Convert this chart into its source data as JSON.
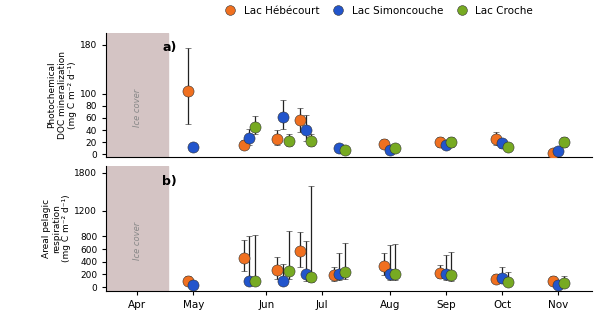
{
  "legend_labels": [
    "Lac Hébécourt",
    "Lac Simoncouche",
    "Lac Croche"
  ],
  "legend_colors": [
    "#F07020",
    "#2255CC",
    "#77AA22"
  ],
  "panel_a": {
    "ylabel": "Photochemical\nDOC mineralization\n(mg C m⁻² d⁻¹)",
    "ylim": [
      -5,
      200
    ],
    "yticks": [
      0,
      20,
      40,
      60,
      80,
      100,
      180
    ],
    "label": "a)",
    "heb": {
      "x": [
        1.0,
        2.0,
        2.6,
        3.0,
        3.6,
        4.5,
        5.5,
        6.5,
        7.5
      ],
      "y": [
        105,
        15,
        25,
        57,
        null,
        17,
        20,
        25,
        3
      ],
      "yerr_lo": [
        55,
        5,
        10,
        20,
        null,
        7,
        8,
        10,
        2
      ],
      "yerr_hi": [
        70,
        8,
        15,
        20,
        null,
        8,
        9,
        12,
        3
      ]
    },
    "sim": {
      "x": [
        1.0,
        2.0,
        2.6,
        3.0,
        3.6,
        4.5,
        5.5,
        6.5,
        7.5
      ],
      "y": [
        12,
        27,
        62,
        40,
        10,
        8,
        16,
        18,
        5
      ],
      "yerr_lo": [
        4,
        12,
        20,
        18,
        5,
        3,
        6,
        7,
        2
      ],
      "yerr_hi": [
        5,
        15,
        28,
        25,
        7,
        4,
        7,
        8,
        3
      ]
    },
    "croche": {
      "x": [
        1.0,
        2.0,
        2.6,
        3.0,
        3.6,
        4.5,
        5.5,
        6.5,
        7.5
      ],
      "y": [
        null,
        45,
        22,
        22,
        8,
        10,
        20,
        13,
        20
      ],
      "yerr_lo": [
        null,
        12,
        8,
        8,
        3,
        3,
        7,
        5,
        7
      ],
      "yerr_hi": [
        null,
        18,
        12,
        12,
        5,
        4,
        8,
        6,
        8
      ]
    }
  },
  "panel_b": {
    "ylabel": "Areal pelagic\nrespiration\n(mg C m⁻² d⁻¹)",
    "ylim": [
      -60,
      1900
    ],
    "yticks": [
      0,
      200,
      400,
      600,
      800,
      1200,
      1800
    ],
    "label": "b)",
    "heb": {
      "x": [
        1.0,
        2.0,
        2.6,
        3.0,
        3.6,
        4.5,
        5.5,
        6.5,
        7.5
      ],
      "y": [
        90,
        460,
        270,
        565,
        190,
        330,
        225,
        130,
        100
      ],
      "yerr_lo": [
        60,
        200,
        140,
        250,
        100,
        140,
        80,
        60,
        50
      ],
      "yerr_hi": [
        80,
        280,
        200,
        300,
        120,
        200,
        120,
        80,
        70
      ]
    },
    "sim": {
      "x": [
        1.0,
        2.0,
        2.6,
        3.0,
        3.6,
        4.5,
        5.5,
        6.5,
        7.5
      ],
      "y": [
        30,
        100,
        100,
        200,
        200,
        210,
        200,
        150,
        30
      ],
      "yerr_lo": [
        20,
        60,
        60,
        100,
        90,
        90,
        80,
        70,
        20
      ],
      "yerr_hi": [
        30,
        700,
        260,
        520,
        330,
        460,
        310,
        160,
        25
      ]
    },
    "croche": {
      "x": [
        1.0,
        2.0,
        2.6,
        3.0,
        3.6,
        4.5,
        5.5,
        6.5,
        7.5
      ],
      "y": [
        null,
        105,
        255,
        165,
        235,
        215,
        195,
        75,
        65
      ],
      "yerr_lo": [
        null,
        60,
        130,
        90,
        110,
        100,
        90,
        40,
        35
      ],
      "yerr_hi": [
        null,
        720,
        620,
        1420,
        460,
        460,
        360,
        160,
        110
      ]
    }
  },
  "ice_color": "#D4C4C4",
  "ice_xmin": -0.55,
  "ice_xmax": 0.55,
  "marker_size": 8,
  "capsize": 2,
  "elinewidth": 0.9,
  "offsets": [
    -0.1,
    0.0,
    0.1
  ],
  "xlim": [
    -0.55,
    8.1
  ],
  "xtick_positions": [
    0,
    1,
    2.3,
    3.3,
    4.5,
    5.5,
    6.5,
    7.5
  ],
  "xtick_labels": [
    "Apr",
    "May",
    "Jun",
    "Jul",
    "Aug",
    "Sep",
    "Oct",
    "Nov"
  ]
}
